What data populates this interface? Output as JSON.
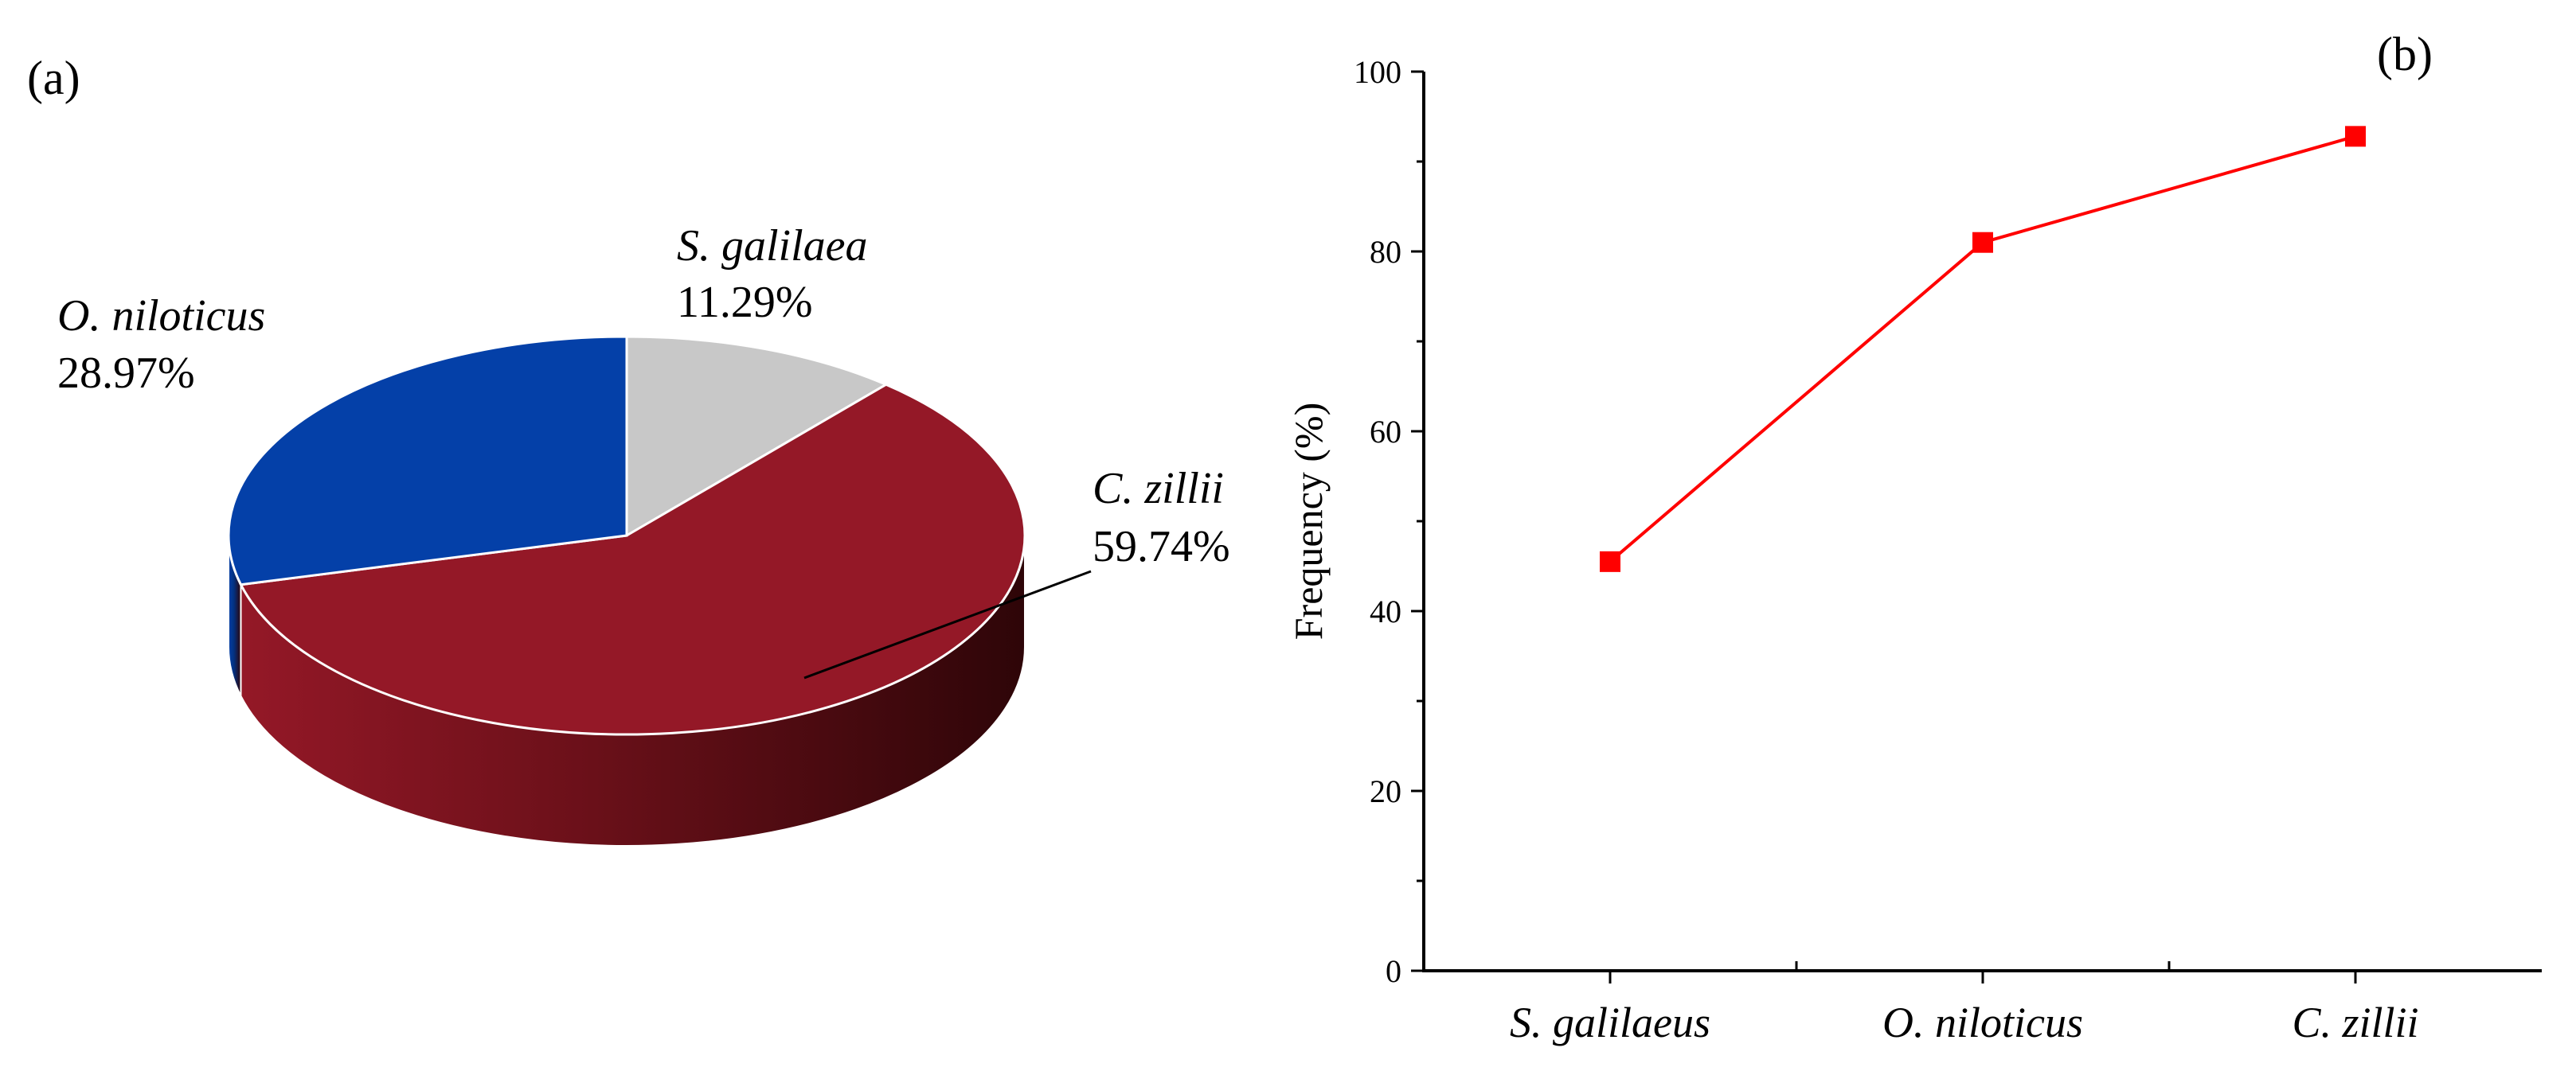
{
  "chart_data": [
    {
      "panel": "(a)",
      "type": "pie",
      "slices": [
        {
          "label": "S. galilaea",
          "value_text": "11.29%",
          "value": 11.29,
          "color": "#c8c8c8",
          "side_color": "#a0a0a0"
        },
        {
          "label": "C. zillii",
          "value_text": "59.74%",
          "value": 59.74,
          "color": "#941827",
          "side_color": "#6a1019"
        },
        {
          "label": "O. niloticus",
          "value_text": "28.97%",
          "value": 28.97,
          "color": "#0440a8",
          "side_color": "#03307e"
        }
      ]
    },
    {
      "panel": "(b)",
      "type": "line",
      "categories": [
        "S. galilaeus",
        "O. niloticus",
        "C. zillii"
      ],
      "series": [
        {
          "values": [
            45.5,
            81,
            92.8
          ],
          "color": "#ff0000"
        }
      ],
      "ylabel": "Frequency (%)",
      "ylim": [
        0,
        100
      ],
      "yticks": [
        "0",
        "20",
        "40",
        "60",
        "80",
        "100"
      ],
      "ytick_values": [
        0,
        20,
        40,
        60,
        80,
        100
      ]
    }
  ]
}
